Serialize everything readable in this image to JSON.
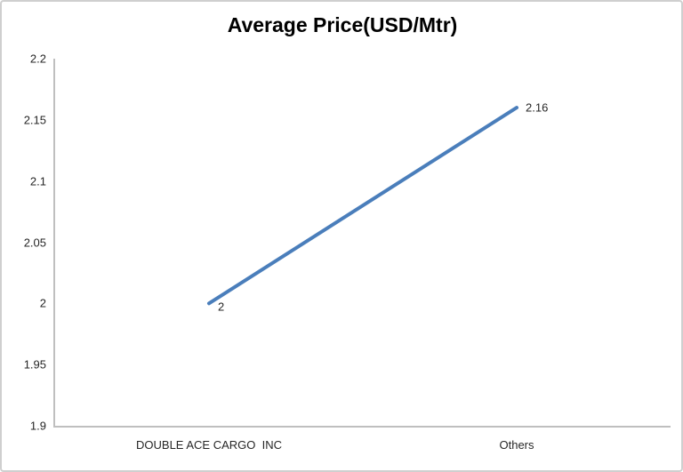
{
  "chart_data": {
    "type": "line",
    "title": "Average Price(USD/Mtr)",
    "categories": [
      "DOUBLE ACE CARGO  INC",
      "Others"
    ],
    "series": [
      {
        "values": [
          2,
          2.16
        ],
        "point_labels": [
          "2",
          "2.16"
        ]
      }
    ],
    "ylim": [
      1.9,
      2.2
    ],
    "ytick_values": [
      2.2,
      2.15,
      2.1,
      2.05,
      2,
      1.95,
      1.9
    ],
    "ytick_labels": [
      "2.2",
      "2.15",
      "2.1",
      "2.05",
      "2",
      "1.95",
      "1.9"
    ],
    "xlabel": "",
    "ylabel": "",
    "grid": "off",
    "legend": "none"
  },
  "colors": {
    "line": "#4a7ebb",
    "axis": "#bfbfbf",
    "text": "#262626",
    "title": "#000000",
    "frame_border": "#cfcfcf",
    "background": "#ffffff"
  }
}
